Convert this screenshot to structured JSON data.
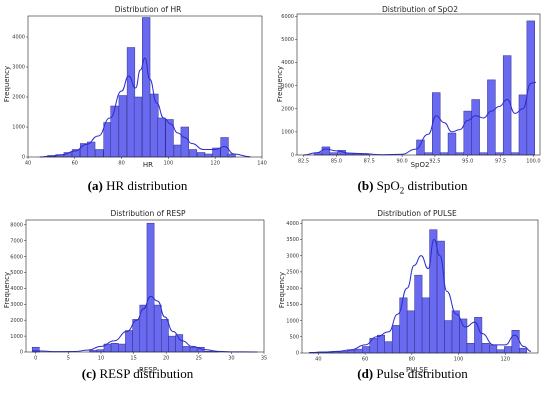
{
  "chart_data": [
    {
      "type": "bar",
      "title": "Distribution of HR",
      "xlabel": "HR",
      "ylabel": "Frequency",
      "caption_letter": "(a)",
      "caption_text": "HR distribution",
      "xlim": [
        40,
        140
      ],
      "ylim": [
        0,
        4700
      ],
      "xticks": [
        40,
        60,
        80,
        100,
        120,
        140
      ],
      "yticks": [
        0,
        1000,
        2000,
        3000,
        4000
      ],
      "bin_width": 3.3,
      "bins": [
        {
          "x": 50,
          "y": 50
        },
        {
          "x": 53.5,
          "y": 80
        },
        {
          "x": 57,
          "y": 150
        },
        {
          "x": 60.5,
          "y": 250
        },
        {
          "x": 64,
          "y": 450
        },
        {
          "x": 67,
          "y": 500
        },
        {
          "x": 70.5,
          "y": 250
        },
        {
          "x": 74,
          "y": 1150
        },
        {
          "x": 77,
          "y": 1700
        },
        {
          "x": 80.5,
          "y": 2050
        },
        {
          "x": 84,
          "y": 3650
        },
        {
          "x": 87,
          "y": 2000
        },
        {
          "x": 90.5,
          "y": 4650
        },
        {
          "x": 94,
          "y": 2100
        },
        {
          "x": 97,
          "y": 1300
        },
        {
          "x": 100.5,
          "y": 1250
        },
        {
          "x": 104,
          "y": 400
        },
        {
          "x": 107,
          "y": 1000
        },
        {
          "x": 110.5,
          "y": 250
        },
        {
          "x": 114,
          "y": 150
        },
        {
          "x": 117,
          "y": 100
        },
        {
          "x": 120.5,
          "y": 300
        },
        {
          "x": 124,
          "y": 650
        },
        {
          "x": 127,
          "y": 100
        }
      ],
      "kde": [
        [
          45,
          0
        ],
        [
          50,
          30
        ],
        [
          55,
          80
        ],
        [
          60,
          200
        ],
        [
          65,
          420
        ],
        [
          70,
          700
        ],
        [
          75,
          1300
        ],
        [
          80,
          2200
        ],
        [
          83,
          2700
        ],
        [
          86,
          2300
        ],
        [
          88,
          2900
        ],
        [
          90,
          3300
        ],
        [
          92,
          2600
        ],
        [
          95,
          1800
        ],
        [
          98,
          1300
        ],
        [
          101,
          1100
        ],
        [
          104,
          800
        ],
        [
          107,
          650
        ],
        [
          110,
          450
        ],
        [
          115,
          250
        ],
        [
          120,
          250
        ],
        [
          124,
          350
        ],
        [
          128,
          100
        ],
        [
          135,
          10
        ]
      ]
    },
    {
      "type": "bar",
      "title": "Distribution of SpO2",
      "xlabel": "SpO2",
      "ylabel": "Frequency",
      "caption_letter": "(b)",
      "caption_prefix": "SpO",
      "caption_sub": "2",
      "caption_suffix": " distribution",
      "xlim": [
        82,
        100.5
      ],
      "ylim": [
        0,
        6100
      ],
      "xticks": [
        82.5,
        85.0,
        87.5,
        90.0,
        92.5,
        95.0,
        97.5,
        100.0
      ],
      "xtick_labels": [
        "82.5",
        "85.0",
        "87.5",
        "90.0",
        "92.5",
        "95.0",
        "97.5",
        "100.0"
      ],
      "yticks": [
        0,
        1000,
        2000,
        3000,
        4000,
        5000,
        6000
      ],
      "bin_width": 0.6,
      "bins": [
        {
          "x": 83.6,
          "y": 100
        },
        {
          "x": 84.2,
          "y": 350
        },
        {
          "x": 84.8,
          "y": 100
        },
        {
          "x": 85.4,
          "y": 200
        },
        {
          "x": 86.0,
          "y": 80
        },
        {
          "x": 86.6,
          "y": 60
        },
        {
          "x": 87.2,
          "y": 50
        },
        {
          "x": 91.4,
          "y": 650
        },
        {
          "x": 92.0,
          "y": 100
        },
        {
          "x": 92.6,
          "y": 2700
        },
        {
          "x": 93.2,
          "y": 100
        },
        {
          "x": 93.8,
          "y": 950
        },
        {
          "x": 94.4,
          "y": 100
        },
        {
          "x": 95.0,
          "y": 1900
        },
        {
          "x": 95.6,
          "y": 2400
        },
        {
          "x": 96.2,
          "y": 100
        },
        {
          "x": 96.8,
          "y": 3250
        },
        {
          "x": 97.4,
          "y": 100
        },
        {
          "x": 98.0,
          "y": 4300
        },
        {
          "x": 98.6,
          "y": 100
        },
        {
          "x": 99.2,
          "y": 2600
        },
        {
          "x": 99.8,
          "y": 5800
        }
      ],
      "kde": [
        [
          82.5,
          0
        ],
        [
          83.5,
          100
        ],
        [
          84.2,
          260
        ],
        [
          85,
          180
        ],
        [
          86,
          80
        ],
        [
          87,
          60
        ],
        [
          88.5,
          10
        ],
        [
          90,
          30
        ],
        [
          91,
          250
        ],
        [
          92,
          900
        ],
        [
          92.6,
          1700
        ],
        [
          93.2,
          1400
        ],
        [
          93.8,
          1000
        ],
        [
          94.4,
          1100
        ],
        [
          95,
          1500
        ],
        [
          95.6,
          1700
        ],
        [
          96.2,
          1600
        ],
        [
          96.8,
          1900
        ],
        [
          97.4,
          2100
        ],
        [
          98,
          2400
        ],
        [
          98.6,
          1800
        ],
        [
          99.2,
          2000
        ],
        [
          99.8,
          3100
        ],
        [
          100.2,
          3150
        ]
      ]
    },
    {
      "type": "bar",
      "title": "Distribution of RESP",
      "xlabel": "RESP",
      "ylabel": "Frequency",
      "caption_letter": "(c)",
      "caption_text": "RESP distribution",
      "xlim": [
        -1.5,
        35
      ],
      "ylim": [
        0,
        8300
      ],
      "xticks": [
        0,
        5,
        10,
        15,
        20,
        25,
        30,
        35
      ],
      "yticks": [
        0,
        1000,
        2000,
        3000,
        4000,
        5000,
        6000,
        7000,
        8000
      ],
      "bin_width": 1.1,
      "bins": [
        {
          "x": 0,
          "y": 300
        },
        {
          "x": 8.8,
          "y": 100
        },
        {
          "x": 9.9,
          "y": 150
        },
        {
          "x": 11,
          "y": 500
        },
        {
          "x": 12.1,
          "y": 550
        },
        {
          "x": 13.2,
          "y": 500
        },
        {
          "x": 14.3,
          "y": 1350
        },
        {
          "x": 15.4,
          "y": 2050
        },
        {
          "x": 16.5,
          "y": 2950
        },
        {
          "x": 17.6,
          "y": 8100
        },
        {
          "x": 18.7,
          "y": 2950
        },
        {
          "x": 19.8,
          "y": 2050
        },
        {
          "x": 20.9,
          "y": 1000
        },
        {
          "x": 22,
          "y": 1100
        },
        {
          "x": 23.1,
          "y": 350
        },
        {
          "x": 24.2,
          "y": 300
        },
        {
          "x": 25.3,
          "y": 300
        },
        {
          "x": 26.4,
          "y": 50
        },
        {
          "x": 27.5,
          "y": 30
        }
      ],
      "kde": [
        [
          -0.5,
          80
        ],
        [
          1,
          60
        ],
        [
          3,
          20
        ],
        [
          6,
          30
        ],
        [
          8,
          120
        ],
        [
          10,
          350
        ],
        [
          12,
          700
        ],
        [
          14,
          1300
        ],
        [
          15.5,
          2000
        ],
        [
          16.5,
          2700
        ],
        [
          17.6,
          3500
        ],
        [
          18.7,
          3200
        ],
        [
          19.8,
          2200
        ],
        [
          21,
          1300
        ],
        [
          22.5,
          700
        ],
        [
          24,
          350
        ],
        [
          26,
          150
        ],
        [
          28,
          40
        ],
        [
          30,
          10
        ],
        [
          34,
          0
        ]
      ]
    },
    {
      "type": "bar",
      "title": "Distribution of PULSE",
      "xlabel": "PULSE",
      "ylabel": "Frequency",
      "caption_letter": "(d)",
      "caption_text": "Pulse distribution",
      "xlim": [
        33,
        134
      ],
      "ylim": [
        0,
        4100
      ],
      "xticks": [
        40,
        60,
        80,
        100,
        120
      ],
      "yticks": [
        0,
        500,
        1000,
        1500,
        2000,
        2500,
        3000,
        3500,
        4000
      ],
      "bin_width": 3.2,
      "bins": [
        {
          "x": 38,
          "y": 20
        },
        {
          "x": 41.2,
          "y": 30
        },
        {
          "x": 44.4,
          "y": 30
        },
        {
          "x": 47.6,
          "y": 40
        },
        {
          "x": 50.8,
          "y": 50
        },
        {
          "x": 54,
          "y": 80
        },
        {
          "x": 57.2,
          "y": 120
        },
        {
          "x": 60.4,
          "y": 200
        },
        {
          "x": 63.6,
          "y": 450
        },
        {
          "x": 66.8,
          "y": 550
        },
        {
          "x": 70,
          "y": 350
        },
        {
          "x": 73.2,
          "y": 850
        },
        {
          "x": 76.4,
          "y": 1700
        },
        {
          "x": 79.6,
          "y": 1300
        },
        {
          "x": 82.8,
          "y": 2400
        },
        {
          "x": 86,
          "y": 1700
        },
        {
          "x": 89.2,
          "y": 3800
        },
        {
          "x": 92.4,
          "y": 3450
        },
        {
          "x": 95.6,
          "y": 1000
        },
        {
          "x": 98.8,
          "y": 1300
        },
        {
          "x": 102,
          "y": 1050
        },
        {
          "x": 105.2,
          "y": 300
        },
        {
          "x": 108.4,
          "y": 1100
        },
        {
          "x": 111.6,
          "y": 300
        },
        {
          "x": 114.8,
          "y": 250
        },
        {
          "x": 118,
          "y": 100
        },
        {
          "x": 121.2,
          "y": 200
        },
        {
          "x": 124.4,
          "y": 700
        },
        {
          "x": 127.6,
          "y": 150
        }
      ],
      "kde": [
        [
          36,
          10
        ],
        [
          42,
          30
        ],
        [
          48,
          50
        ],
        [
          54,
          100
        ],
        [
          60,
          250
        ],
        [
          65,
          500
        ],
        [
          70,
          650
        ],
        [
          74,
          1200
        ],
        [
          78,
          2000
        ],
        [
          81,
          2700
        ],
        [
          84,
          3000
        ],
        [
          87,
          2600
        ],
        [
          89.5,
          3500
        ],
        [
          92,
          3000
        ],
        [
          95,
          1900
        ],
        [
          99,
          1200
        ],
        [
          103,
          800
        ],
        [
          107,
          950
        ],
        [
          110,
          600
        ],
        [
          115,
          250
        ],
        [
          120,
          250
        ],
        [
          124,
          550
        ],
        [
          128,
          200
        ],
        [
          131,
          50
        ]
      ]
    }
  ]
}
